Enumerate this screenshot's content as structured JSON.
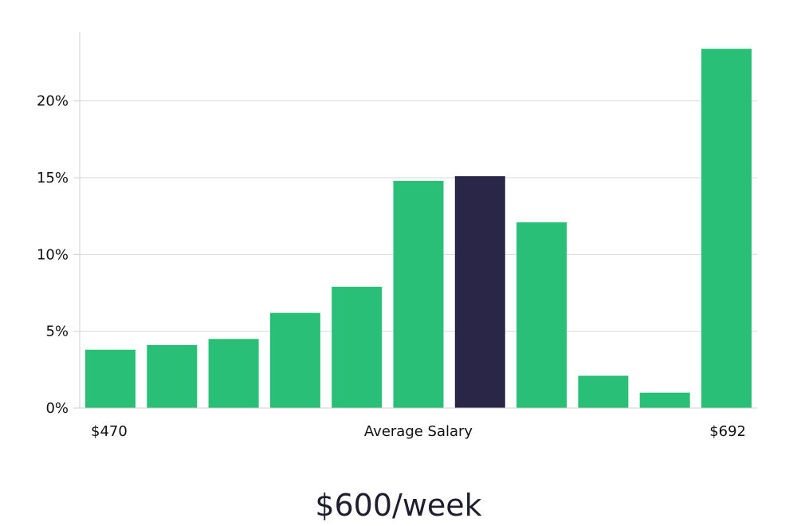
{
  "chart_data": {
    "type": "bar",
    "title": "$600/week",
    "x_labels": {
      "left": "$470",
      "center": "Average Salary",
      "right": "$692"
    },
    "values": [
      3.8,
      4.1,
      4.5,
      6.2,
      7.9,
      14.8,
      15.1,
      12.1,
      2.1,
      1.0,
      23.4
    ],
    "highlight_index": 6,
    "ylim": [
      0,
      24.5
    ],
    "yticks": [
      0,
      5,
      10,
      15,
      20
    ],
    "ytick_labels": [
      "0%",
      "5%",
      "10%",
      "15%",
      "20%"
    ],
    "grid": true,
    "legend": "none",
    "colors": {
      "bar": "#2abf76",
      "highlight": "#292648"
    }
  }
}
